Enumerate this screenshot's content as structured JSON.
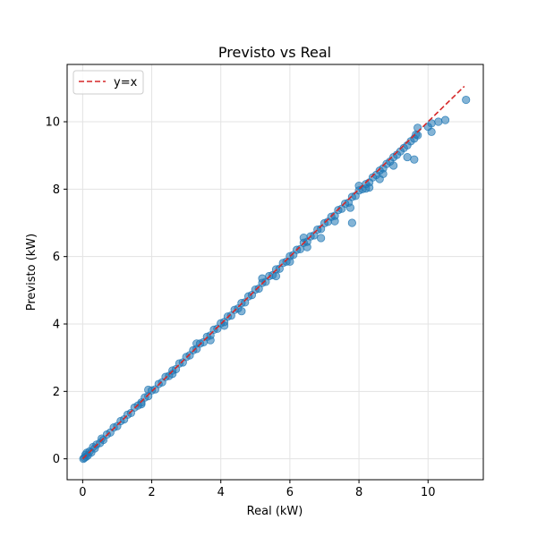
{
  "chart_data": {
    "type": "scatter",
    "title": "Previsto vs Real",
    "xlabel": "Real (kW)",
    "ylabel": "Previsto (kW)",
    "xlim": [
      -0.45,
      11.6
    ],
    "ylim": [
      -0.62,
      11.7
    ],
    "xticks": [
      0,
      2,
      4,
      6,
      8,
      10
    ],
    "yticks": [
      0,
      2,
      4,
      6,
      8,
      10
    ],
    "grid": true,
    "legend": {
      "placement": "top-left",
      "entries": [
        {
          "label": "y=x",
          "style": "dashed-line",
          "color": "#d62728"
        }
      ]
    },
    "reference_line": {
      "label": "y=x",
      "from": [
        0,
        0
      ],
      "to": [
        11.05,
        11.05
      ],
      "color": "#d62728"
    },
    "series": [
      {
        "color": "#1f77b4",
        "points": [
          [
            0.02,
            0.0
          ],
          [
            0.05,
            0.03
          ],
          [
            0.08,
            0.12
          ],
          [
            0.1,
            0.06
          ],
          [
            0.12,
            0.18
          ],
          [
            0.15,
            0.1
          ],
          [
            0.2,
            0.22
          ],
          [
            0.25,
            0.19
          ],
          [
            0.3,
            0.35
          ],
          [
            0.35,
            0.31
          ],
          [
            0.4,
            0.42
          ],
          [
            0.5,
            0.47
          ],
          [
            0.55,
            0.6
          ],
          [
            0.6,
            0.56
          ],
          [
            0.7,
            0.72
          ],
          [
            0.8,
            0.78
          ],
          [
            0.9,
            0.93
          ],
          [
            1.0,
            0.97
          ],
          [
            1.1,
            1.12
          ],
          [
            1.2,
            1.17
          ],
          [
            1.3,
            1.31
          ],
          [
            1.4,
            1.36
          ],
          [
            1.5,
            1.52
          ],
          [
            1.6,
            1.58
          ],
          [
            1.7,
            1.67
          ],
          [
            1.8,
            1.82
          ],
          [
            1.9,
            1.86
          ],
          [
            2.0,
            2.03
          ],
          [
            2.1,
            2.06
          ],
          [
            2.2,
            2.22
          ],
          [
            2.3,
            2.27
          ],
          [
            2.4,
            2.43
          ],
          [
            2.5,
            2.46
          ],
          [
            2.6,
            2.62
          ],
          [
            2.7,
            2.66
          ],
          [
            2.8,
            2.83
          ],
          [
            2.9,
            2.86
          ],
          [
            3.0,
            3.02
          ],
          [
            3.1,
            3.07
          ],
          [
            3.2,
            3.22
          ],
          [
            3.3,
            3.26
          ],
          [
            3.4,
            3.42
          ],
          [
            3.5,
            3.46
          ],
          [
            3.6,
            3.62
          ],
          [
            3.7,
            3.66
          ],
          [
            3.8,
            3.83
          ],
          [
            3.9,
            3.86
          ],
          [
            4.0,
            4.02
          ],
          [
            4.1,
            4.06
          ],
          [
            4.2,
            4.22
          ],
          [
            4.3,
            4.25
          ],
          [
            4.4,
            4.42
          ],
          [
            4.5,
            4.46
          ],
          [
            4.6,
            4.62
          ],
          [
            4.7,
            4.64
          ],
          [
            4.8,
            4.82
          ],
          [
            4.9,
            4.86
          ],
          [
            5.0,
            5.02
          ],
          [
            5.1,
            5.05
          ],
          [
            5.2,
            5.22
          ],
          [
            5.3,
            5.25
          ],
          [
            5.4,
            5.42
          ],
          [
            5.5,
            5.45
          ],
          [
            5.6,
            5.62
          ],
          [
            5.7,
            5.64
          ],
          [
            5.8,
            5.81
          ],
          [
            5.9,
            5.85
          ],
          [
            6.0,
            6.01
          ],
          [
            6.1,
            6.05
          ],
          [
            6.2,
            6.2
          ],
          [
            6.3,
            6.22
          ],
          [
            6.4,
            6.41
          ],
          [
            6.5,
            6.44
          ],
          [
            6.6,
            6.6
          ],
          [
            6.7,
            6.63
          ],
          [
            6.8,
            6.8
          ],
          [
            6.9,
            6.82
          ],
          [
            7.0,
            6.99
          ],
          [
            7.1,
            7.03
          ],
          [
            7.2,
            7.18
          ],
          [
            7.3,
            7.21
          ],
          [
            7.4,
            7.38
          ],
          [
            7.5,
            7.42
          ],
          [
            7.6,
            7.57
          ],
          [
            7.7,
            7.6
          ],
          [
            7.8,
            7.77
          ],
          [
            7.9,
            7.8
          ],
          [
            8.0,
            7.96
          ],
          [
            8.1,
            8.0
          ],
          [
            8.2,
            8.15
          ],
          [
            8.3,
            8.2
          ],
          [
            8.4,
            8.35
          ],
          [
            8.5,
            8.42
          ],
          [
            8.6,
            8.55
          ],
          [
            8.7,
            8.62
          ],
          [
            8.8,
            8.75
          ],
          [
            8.9,
            8.82
          ],
          [
            9.0,
            8.95
          ],
          [
            9.1,
            9.02
          ],
          [
            9.2,
            9.12
          ],
          [
            9.3,
            9.22
          ],
          [
            9.4,
            9.3
          ],
          [
            9.5,
            9.42
          ],
          [
            9.6,
            9.5
          ],
          [
            9.65,
            9.62
          ],
          [
            4.6,
            4.38
          ],
          [
            5.6,
            5.42
          ],
          [
            6.5,
            6.28
          ],
          [
            7.3,
            7.05
          ],
          [
            7.75,
            7.45
          ],
          [
            8.2,
            8.02
          ],
          [
            8.7,
            8.45
          ],
          [
            9.4,
            8.95
          ],
          [
            9.6,
            8.88
          ],
          [
            7.8,
            7.0
          ],
          [
            8.6,
            8.3
          ],
          [
            9.0,
            8.7
          ],
          [
            6.0,
            5.85
          ],
          [
            3.7,
            3.52
          ],
          [
            4.1,
            3.95
          ],
          [
            2.6,
            2.52
          ],
          [
            1.7,
            1.62
          ],
          [
            6.9,
            6.55
          ],
          [
            8.3,
            8.05
          ],
          [
            9.7,
            9.6
          ],
          [
            9.7,
            9.82
          ],
          [
            8.0,
            8.1
          ],
          [
            6.4,
            6.56
          ],
          [
            5.2,
            5.35
          ],
          [
            3.3,
            3.42
          ],
          [
            1.9,
            2.05
          ],
          [
            10.0,
            9.85
          ],
          [
            10.1,
            9.7
          ],
          [
            10.1,
            9.95
          ],
          [
            10.3,
            10.0
          ],
          [
            10.5,
            10.05
          ],
          [
            11.1,
            10.65
          ]
        ]
      }
    ]
  }
}
